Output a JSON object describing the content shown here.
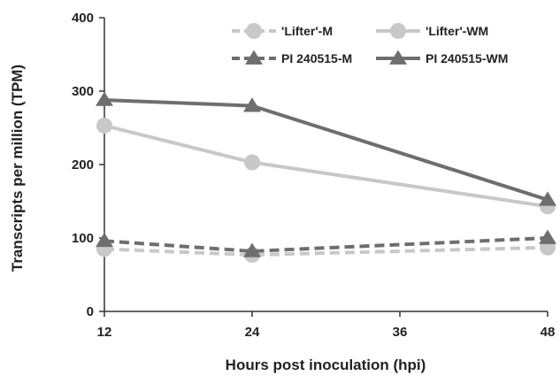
{
  "chart_data": {
    "type": "line",
    "xlabel": "Hours post inoculation (hpi)",
    "ylabel": "Transcripts per million (TPM)",
    "xlim": [
      12,
      48
    ],
    "ylim": [
      0,
      400
    ],
    "x_ticks": [
      "12",
      "24",
      "36",
      "48"
    ],
    "y_ticks": [
      "0",
      "100",
      "200",
      "300",
      "400"
    ],
    "grid": false,
    "legend_position": "top-right",
    "series": [
      {
        "name": "'Lifter'-M",
        "x": [
          12,
          24,
          48
        ],
        "values": [
          85,
          77,
          87
        ],
        "color": "#c8c8c8",
        "dash": true,
        "marker": "circle"
      },
      {
        "name": "'Lifter'-WM",
        "x": [
          12,
          24,
          48
        ],
        "values": [
          253,
          203,
          143
        ],
        "color": "#c8c8c8",
        "dash": false,
        "marker": "circle"
      },
      {
        "name": "PI 240515-M",
        "x": [
          12,
          24,
          48
        ],
        "values": [
          96,
          82,
          100
        ],
        "color": "#6e6e6e",
        "dash": true,
        "marker": "triangle"
      },
      {
        "name": "PI 240515-WM",
        "x": [
          12,
          24,
          48
        ],
        "values": [
          288,
          280,
          152
        ],
        "color": "#6e6e6e",
        "dash": false,
        "marker": "triangle"
      }
    ]
  }
}
